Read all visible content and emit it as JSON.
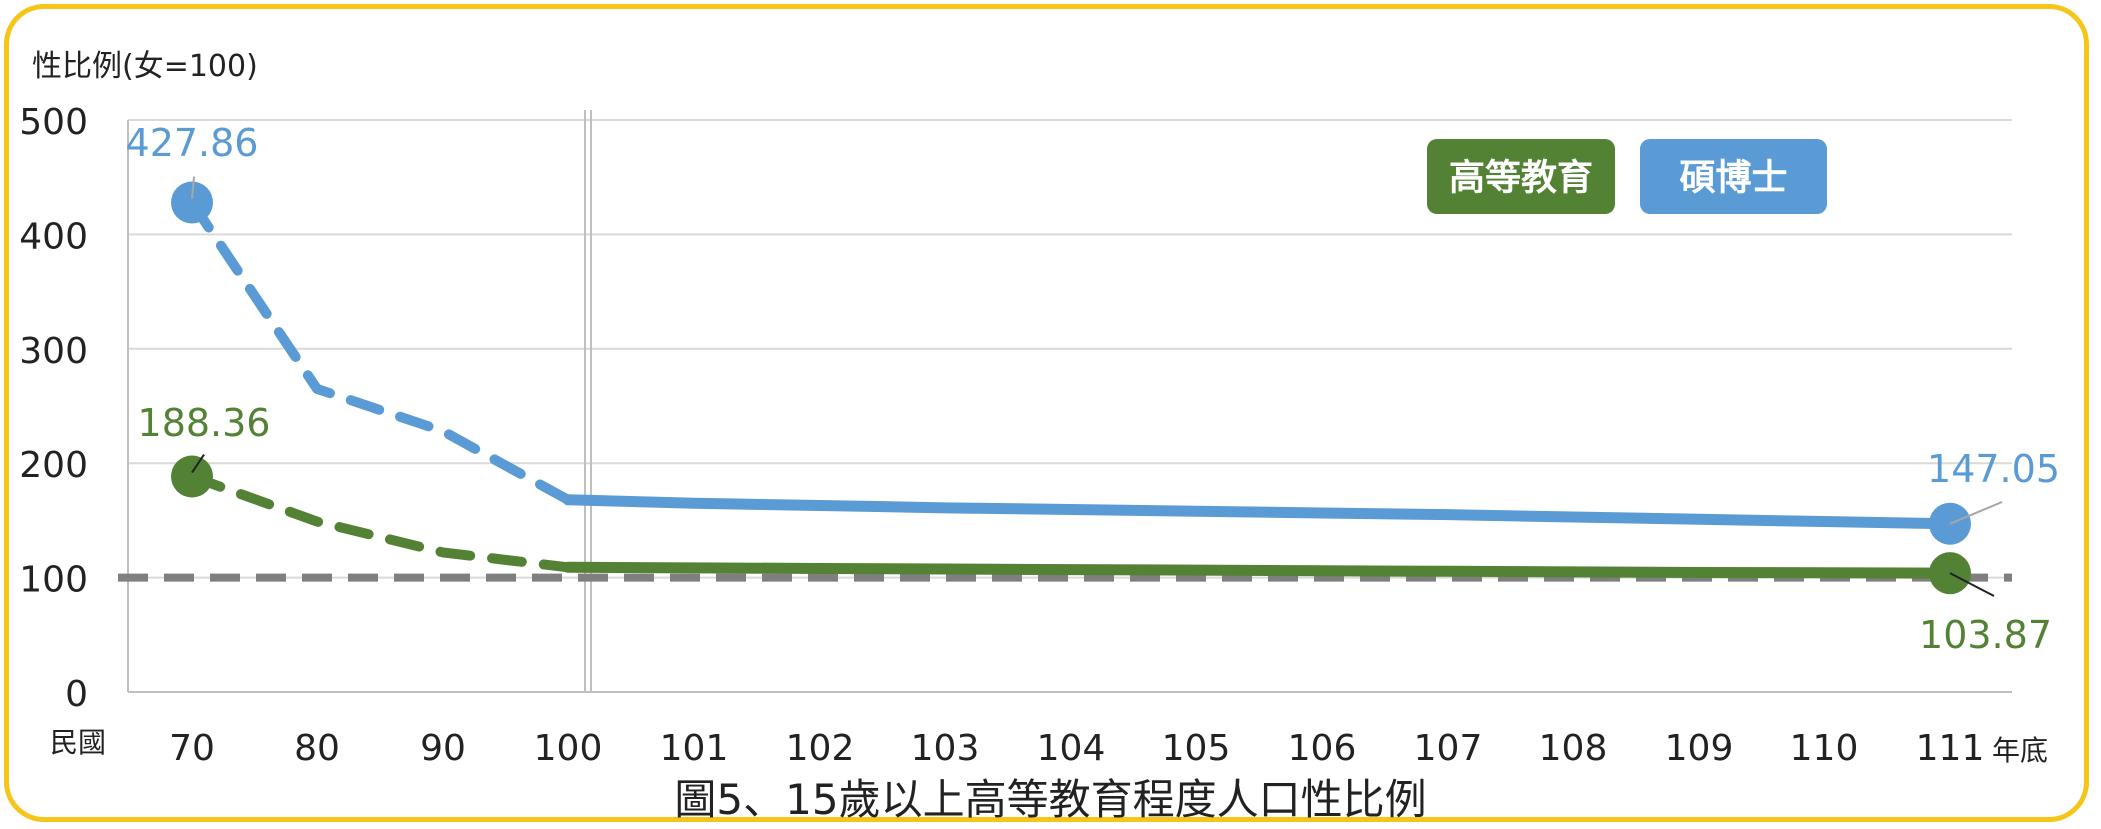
{
  "caption": "圖5、15歲以上高等教育程度人口性比例",
  "chart_data": {
    "type": "line",
    "ylabel": "性比例(女=100)",
    "xlabel_prefix": "民國",
    "xlabel_suffix": "年底",
    "ylim": [
      0,
      500
    ],
    "yticks": [
      "0",
      "100",
      "200",
      "300",
      "400",
      "500"
    ],
    "categories": [
      "70",
      "80",
      "90",
      "100",
      "101",
      "102",
      "103",
      "104",
      "105",
      "106",
      "107",
      "108",
      "109",
      "110",
      "111"
    ],
    "reference_line": 100,
    "legend_placement": "top-right",
    "series": [
      {
        "name": "高等教育",
        "color": "#548235",
        "values": [
          188.36,
          149,
          122,
          109,
          108.5,
          108,
          107.5,
          107,
          106.5,
          106,
          105.5,
          105,
          104.5,
          104.2,
          103.87
        ],
        "start_label": "188.36",
        "end_label": "103.87"
      },
      {
        "name": "碩博士",
        "color": "#5b9bd5",
        "values": [
          427.86,
          265,
          228,
          168,
          165,
          163,
          161,
          159.5,
          158,
          156.5,
          155,
          153,
          151,
          149,
          147.05
        ],
        "start_label": "427.86",
        "end_label": "147.05"
      }
    ]
  }
}
